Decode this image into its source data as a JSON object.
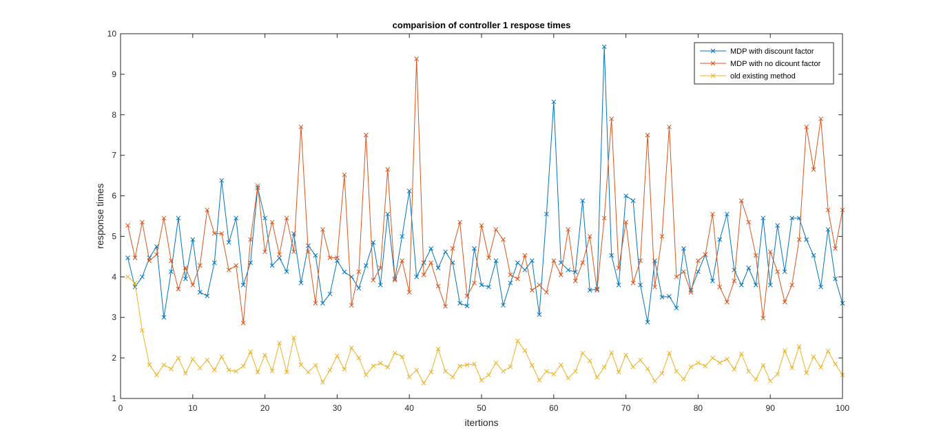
{
  "chart_data": {
    "type": "line",
    "title": "comparision of controller 1 respose times",
    "xlabel": "itertions",
    "ylabel": "response times",
    "xlim": [
      0,
      100
    ],
    "ylim": [
      1,
      10
    ],
    "xticks": [
      0,
      10,
      20,
      30,
      40,
      50,
      60,
      70,
      80,
      90,
      100
    ],
    "yticks": [
      1,
      2,
      3,
      4,
      5,
      6,
      7,
      8,
      9,
      10
    ],
    "grid": false,
    "legend_position": "top-right",
    "marker": "x",
    "x": [
      1,
      2,
      3,
      4,
      5,
      6,
      7,
      8,
      9,
      10,
      11,
      12,
      13,
      14,
      15,
      16,
      17,
      18,
      19,
      20,
      21,
      22,
      23,
      24,
      25,
      26,
      27,
      28,
      29,
      30,
      31,
      32,
      33,
      34,
      35,
      36,
      37,
      38,
      39,
      40,
      41,
      42,
      43,
      44,
      45,
      46,
      47,
      48,
      49,
      50,
      51,
      52,
      53,
      54,
      55,
      56,
      57,
      58,
      59,
      60,
      61,
      62,
      63,
      64,
      65,
      66,
      67,
      68,
      69,
      70,
      71,
      72,
      73,
      74,
      75,
      76,
      77,
      78,
      79,
      80,
      81,
      82,
      83,
      84,
      85,
      86,
      87,
      88,
      89,
      90,
      91,
      92,
      93,
      94,
      95,
      96,
      97,
      98,
      99,
      100
    ],
    "series": [
      {
        "name": "MDP with discount factor",
        "color": "#0072BD",
        "values": [
          4.47,
          3.75,
          4.0,
          4.47,
          4.75,
          3.0,
          4.13,
          5.45,
          3.95,
          4.92,
          3.62,
          3.53,
          4.35,
          6.38,
          4.85,
          5.45,
          3.8,
          4.35,
          6.2,
          5.45,
          4.28,
          4.47,
          4.13,
          5.07,
          3.85,
          4.77,
          4.53,
          3.35,
          3.58,
          4.4,
          4.12,
          4.0,
          3.72,
          4.28,
          4.85,
          3.8,
          5.55,
          3.95,
          5.0,
          6.12,
          4.0,
          4.35,
          4.7,
          4.22,
          4.62,
          4.35,
          3.35,
          3.28,
          4.7,
          3.8,
          3.75,
          4.4,
          3.3,
          3.85,
          4.35,
          4.17,
          4.4,
          3.07,
          5.55,
          8.32,
          4.35,
          4.17,
          4.12,
          5.88,
          3.67,
          3.7,
          9.68,
          4.53,
          3.8,
          6.0,
          5.88,
          3.8,
          2.88,
          4.4,
          3.5,
          3.52,
          3.23,
          4.7,
          3.67,
          4.13,
          4.55,
          3.9,
          4.92,
          5.55,
          4.17,
          3.8,
          4.22,
          3.8,
          5.45,
          3.8,
          5.27,
          4.13,
          5.45,
          5.45,
          4.92,
          4.53,
          3.75,
          5.17,
          3.95,
          3.35
        ]
      },
      {
        "name": "MDP with no dicount factor",
        "color": "#D95319",
        "values": [
          5.27,
          4.47,
          5.35,
          4.4,
          4.55,
          5.45,
          4.4,
          3.7,
          4.22,
          3.8,
          4.28,
          5.65,
          5.07,
          5.07,
          4.17,
          4.28,
          2.86,
          4.92,
          6.25,
          4.62,
          5.35,
          4.55,
          5.45,
          4.62,
          7.7,
          4.62,
          3.35,
          5.17,
          4.47,
          4.47,
          6.52,
          3.3,
          4.13,
          7.5,
          3.92,
          4.22,
          6.65,
          3.92,
          4.4,
          3.62,
          9.38,
          4.05,
          4.35,
          3.77,
          3.27,
          4.7,
          5.35,
          3.53,
          3.85,
          5.27,
          4.47,
          5.17,
          4.92,
          4.05,
          3.95,
          4.53,
          3.67,
          3.8,
          3.62,
          4.4,
          4.05,
          5.17,
          3.9,
          4.35,
          5.0,
          3.67,
          5.45,
          7.9,
          4.22,
          5.35,
          3.85,
          4.4,
          7.5,
          3.75,
          5.0,
          7.7,
          4.0,
          4.13,
          3.62,
          4.4,
          4.55,
          5.55,
          3.75,
          3.38,
          3.9,
          5.88,
          5.35,
          4.53,
          2.98,
          4.62,
          4.13,
          3.38,
          3.8,
          4.92,
          7.7,
          6.65,
          7.9,
          5.65,
          4.7,
          5.65
        ]
      },
      {
        "name": "old existing method",
        "color": "#EDB120",
        "values": [
          4.0,
          3.85,
          2.68,
          1.83,
          1.58,
          1.83,
          1.73,
          2.0,
          1.62,
          1.97,
          1.75,
          1.95,
          1.7,
          2.03,
          1.7,
          1.67,
          1.8,
          2.15,
          1.65,
          2.07,
          1.68,
          2.37,
          1.65,
          2.5,
          1.83,
          1.65,
          1.82,
          1.4,
          1.7,
          2.05,
          1.72,
          2.25,
          2.0,
          1.58,
          1.8,
          1.87,
          1.77,
          2.12,
          2.03,
          1.53,
          1.7,
          1.38,
          1.65,
          2.22,
          1.67,
          1.53,
          1.8,
          1.83,
          1.85,
          1.45,
          1.58,
          1.88,
          1.67,
          1.78,
          2.42,
          2.18,
          1.82,
          1.45,
          1.67,
          1.6,
          1.83,
          1.5,
          1.67,
          2.12,
          1.93,
          1.52,
          1.77,
          2.13,
          1.65,
          2.07,
          1.78,
          1.95,
          1.73,
          1.43,
          1.62,
          2.12,
          1.67,
          1.48,
          1.78,
          1.88,
          1.8,
          2.0,
          1.88,
          1.97,
          1.72,
          2.1,
          1.67,
          1.47,
          1.82,
          1.43,
          1.6,
          2.18,
          1.75,
          2.28,
          1.63,
          2.03,
          1.77,
          2.17,
          1.85,
          1.58
        ]
      }
    ]
  }
}
